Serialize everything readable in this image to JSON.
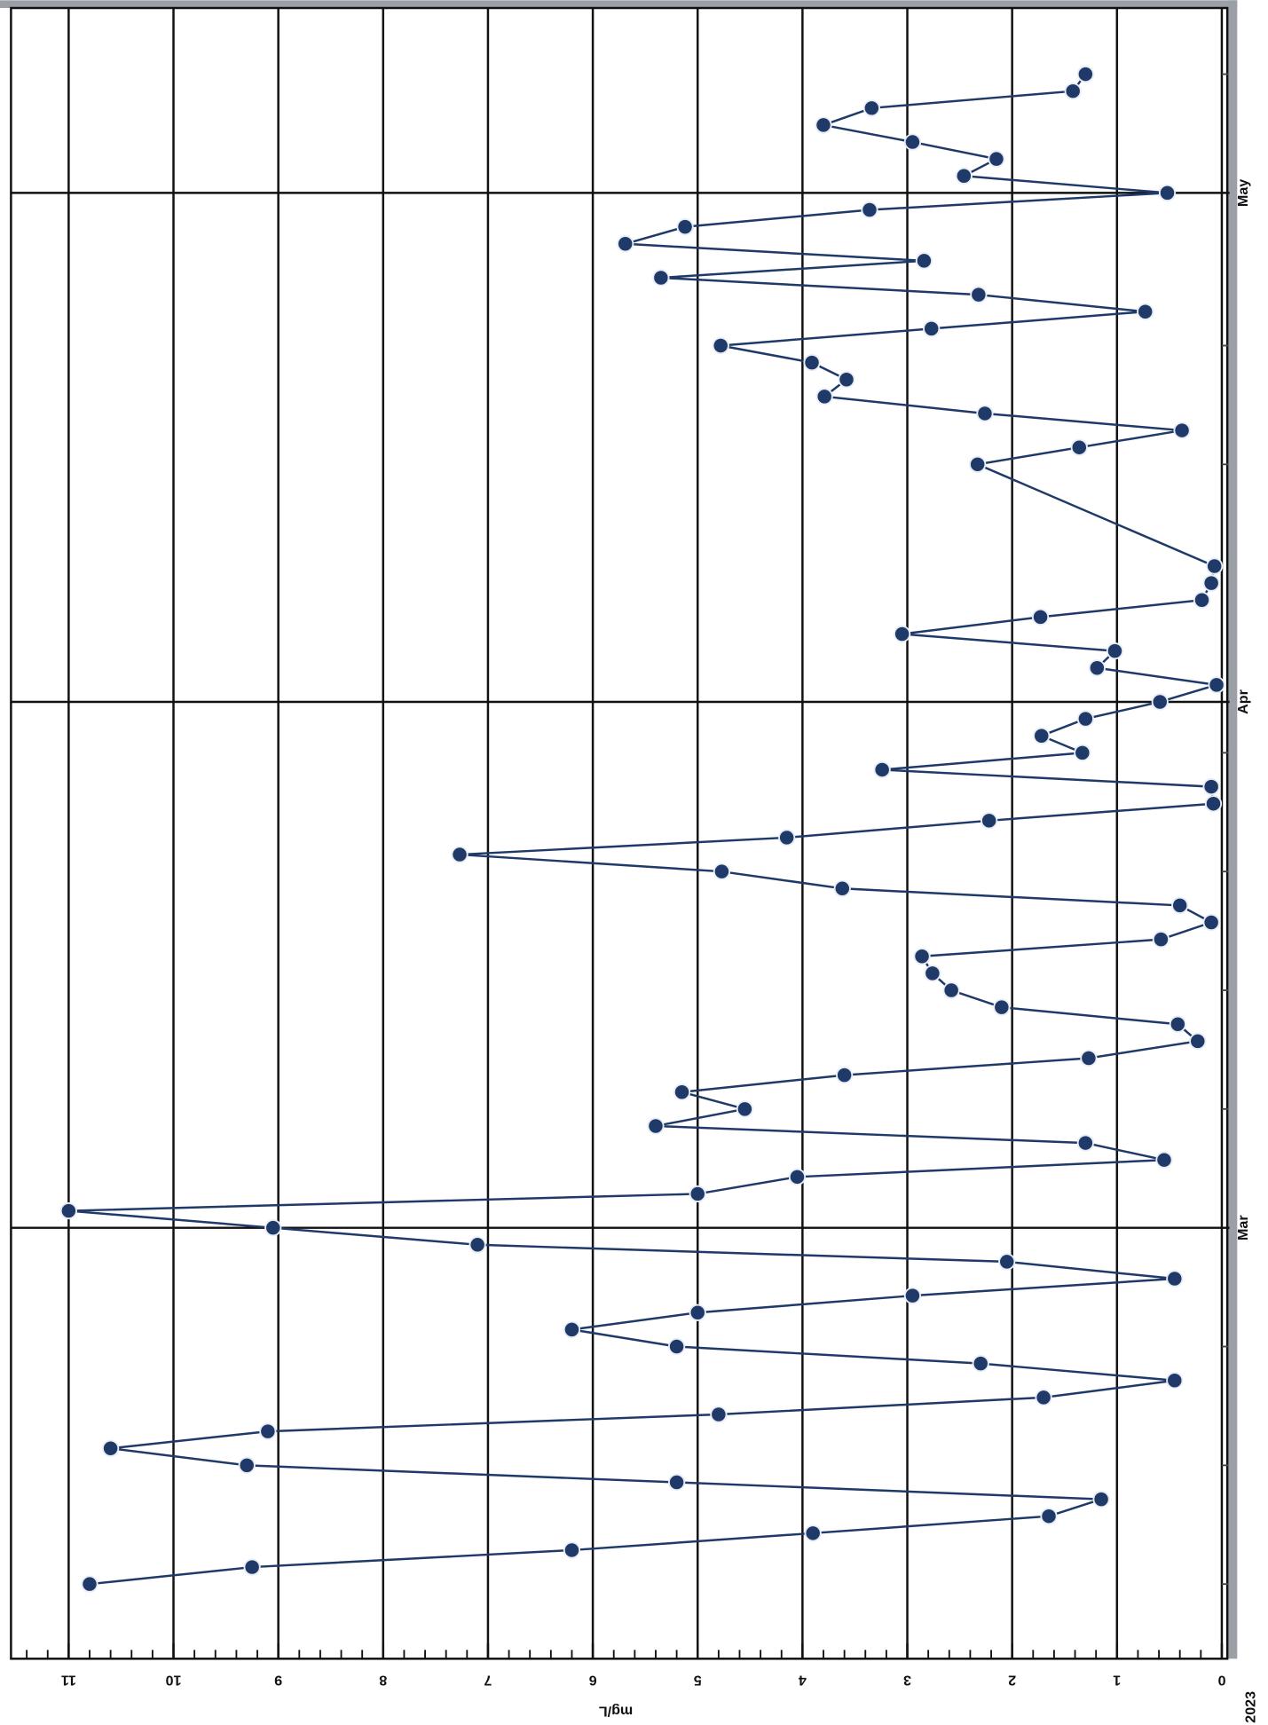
{
  "chart_data": {
    "type": "line",
    "y_label": "mg/L",
    "year_label": "2023",
    "color": "#1f3a68",
    "grid": true,
    "x": [
      39,
      40,
      41,
      42,
      43,
      44,
      45,
      46,
      47,
      48,
      49,
      50,
      51,
      52,
      53,
      54,
      55,
      56,
      57,
      58,
      59,
      60,
      61,
      62,
      63,
      64,
      65,
      66,
      67,
      68,
      69,
      70,
      71,
      72,
      73,
      74,
      75,
      76,
      77,
      78,
      79,
      80,
      81,
      82,
      83,
      84,
      85,
      86,
      87,
      88,
      89,
      90,
      91,
      92,
      93,
      94,
      95,
      96,
      97,
      98,
      99,
      105,
      106,
      107,
      108,
      109,
      110,
      111,
      112,
      113,
      114,
      115,
      116,
      117,
      118,
      119,
      120,
      121,
      122,
      123,
      124,
      125,
      126,
      127,
      128
    ],
    "values": [
      10.8,
      9.25,
      6.2,
      3.9,
      1.65,
      1.15,
      5.2,
      9.3,
      10.6,
      9.1,
      4.8,
      1.7,
      0.45,
      2.3,
      5.2,
      6.2,
      5.0,
      2.95,
      0.45,
      2.05,
      7.1,
      9.05,
      11.0,
      5.0,
      4.05,
      0.55,
      1.3,
      5.4,
      4.55,
      5.15,
      3.6,
      1.27,
      0.23,
      0.42,
      2.1,
      2.58,
      2.76,
      2.86,
      0.58,
      0.1,
      0.4,
      3.62,
      4.77,
      7.27,
      4.15,
      2.22,
      0.08,
      0.1,
      3.24,
      1.33,
      1.72,
      1.3,
      0.59,
      0.05,
      1.19,
      1.02,
      3.05,
      1.73,
      0.19,
      0.1,
      0.07,
      2.33,
      1.36,
      0.38,
      2.26,
      3.79,
      3.58,
      3.91,
      4.78,
      2.77,
      0.73,
      2.32,
      5.35,
      2.84,
      5.69,
      5.12,
      3.36,
      0.52,
      2.46,
      2.15,
      2.95,
      3.8,
      3.34,
      1.42,
      1.3
    ],
    "xlim": [
      34.6,
      131.9
    ],
    "xticks": [
      {
        "value": 60,
        "label": "Mar"
      },
      {
        "value": 91,
        "label": "Apr"
      },
      {
        "value": 121,
        "label": "May"
      }
    ],
    "minor_xticks": [
      39,
      46,
      53,
      67,
      74,
      81,
      88,
      105,
      112,
      128
    ],
    "ylim": [
      0,
      11.55
    ],
    "yticks": [
      0,
      1,
      2,
      3,
      4,
      5,
      6,
      7,
      8,
      9,
      10,
      11
    ],
    "minor_yticks": [
      0.2,
      0.4,
      0.6,
      0.8,
      1.2,
      1.4,
      1.6,
      1.8,
      2.2,
      2.4,
      2.6,
      2.8,
      3.2,
      3.4,
      3.6,
      3.8,
      4.2,
      4.4,
      4.6,
      4.8,
      5.2,
      5.4,
      5.6,
      5.8,
      6.2,
      6.4,
      6.6,
      6.8,
      7.2,
      7.4,
      7.6,
      7.8,
      8.2,
      8.4,
      8.6,
      8.8,
      9.2,
      9.4,
      9.6,
      9.8,
      10.2,
      10.4,
      10.6,
      10.8,
      11.2,
      11.4
    ]
  }
}
